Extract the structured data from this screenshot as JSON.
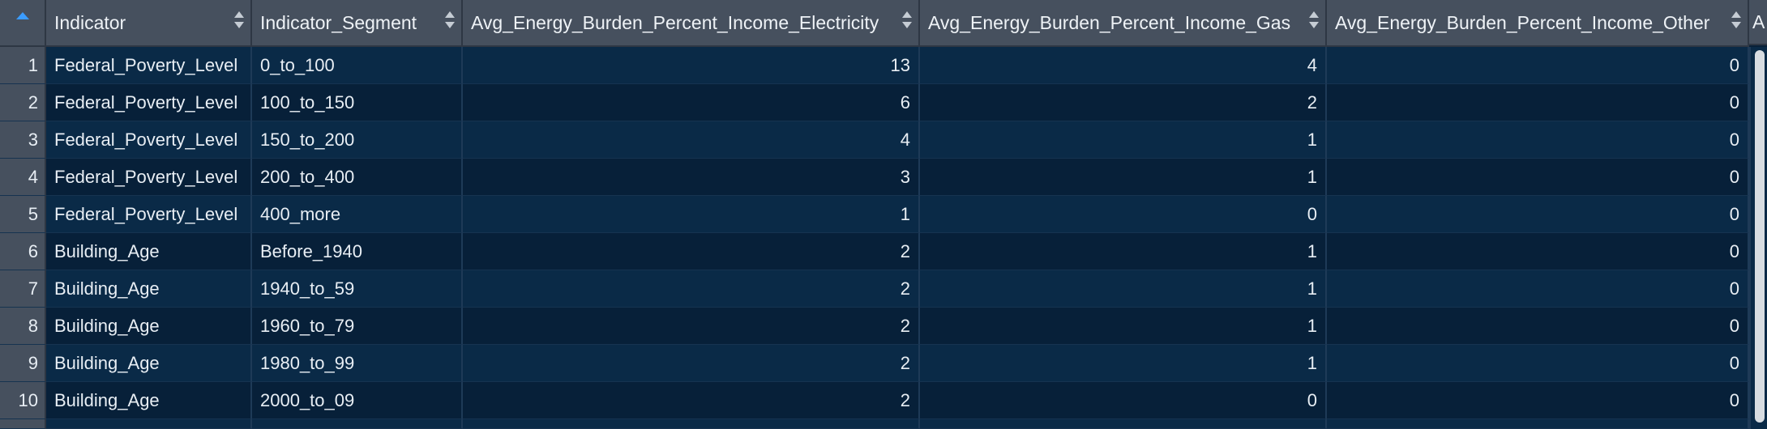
{
  "columns": [
    {
      "label": ""
    },
    {
      "label": "Indicator"
    },
    {
      "label": "Indicator_Segment"
    },
    {
      "label": "Avg_Energy_Burden_Percent_Income_Electricity"
    },
    {
      "label": "Avg_Energy_Burden_Percent_Income_Gas"
    },
    {
      "label": "Avg_Energy_Burden_Percent_Income_Other"
    }
  ],
  "next_column_peek": "A",
  "rows": [
    {
      "n": "1",
      "indicator": "Federal_Poverty_Level",
      "segment": "0_to_100",
      "electricity": "13",
      "gas": "4",
      "other": "0"
    },
    {
      "n": "2",
      "indicator": "Federal_Poverty_Level",
      "segment": "100_to_150",
      "electricity": "6",
      "gas": "2",
      "other": "0"
    },
    {
      "n": "3",
      "indicator": "Federal_Poverty_Level",
      "segment": "150_to_200",
      "electricity": "4",
      "gas": "1",
      "other": "0"
    },
    {
      "n": "4",
      "indicator": "Federal_Poverty_Level",
      "segment": "200_to_400",
      "electricity": "3",
      "gas": "1",
      "other": "0"
    },
    {
      "n": "5",
      "indicator": "Federal_Poverty_Level",
      "segment": "400_more",
      "electricity": "1",
      "gas": "0",
      "other": "0"
    },
    {
      "n": "6",
      "indicator": "Building_Age",
      "segment": "Before_1940",
      "electricity": "2",
      "gas": "1",
      "other": "0"
    },
    {
      "n": "7",
      "indicator": "Building_Age",
      "segment": "1940_to_59",
      "electricity": "2",
      "gas": "1",
      "other": "0"
    },
    {
      "n": "8",
      "indicator": "Building_Age",
      "segment": "1960_to_79",
      "electricity": "2",
      "gas": "1",
      "other": "0"
    },
    {
      "n": "9",
      "indicator": "Building_Age",
      "segment": "1980_to_99",
      "electricity": "2",
      "gas": "1",
      "other": "0"
    },
    {
      "n": "10",
      "indicator": "Building_Age",
      "segment": "2000_to_09",
      "electricity": "2",
      "gas": "0",
      "other": "0"
    }
  ],
  "colors": {
    "header_bg": "#46505e",
    "row_odd": "#0a2a47",
    "row_even": "#072039",
    "sort_accent": "#3b9cff"
  }
}
